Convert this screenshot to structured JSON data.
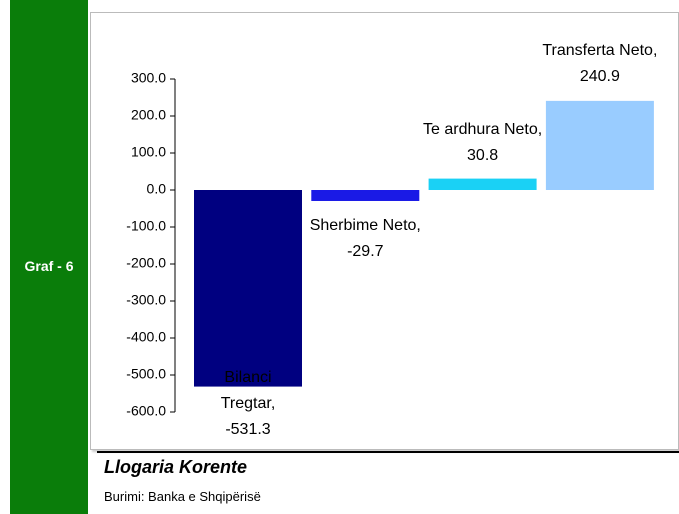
{
  "sidebar_label": "Graf - 6",
  "chart_data": {
    "type": "bar",
    "title": "Llogaria Korente",
    "source": "Burimi: Banka e Shqipërisë",
    "values": [
      -531.3,
      -29.7,
      30.8,
      240.9
    ],
    "value_labels": [
      "Bilanci Tregtar, -531.3",
      "Sherbime Neto, -29.7",
      "Te ardhura Neto, 30.8",
      "Transferta Neto, 240.9"
    ],
    "colors": [
      "#000080",
      "#1a1ae6",
      "#1ad1f5",
      "#99ccff"
    ],
    "ylim": [
      -600,
      300
    ],
    "yticks": [
      {
        "value": 300,
        "label": "300.0"
      },
      {
        "value": 200,
        "label": "200.0"
      },
      {
        "value": 100,
        "label": "100.0"
      },
      {
        "value": 0,
        "label": "0.0"
      },
      {
        "value": -100,
        "label": "-100.0"
      },
      {
        "value": -200,
        "label": "-200.0"
      },
      {
        "value": -300,
        "label": "-300.0"
      },
      {
        "value": -400,
        "label": "-400.0"
      },
      {
        "value": -500,
        "label": "-500.0"
      },
      {
        "value": -600,
        "label": "-600.0"
      }
    ],
    "grid": false
  }
}
